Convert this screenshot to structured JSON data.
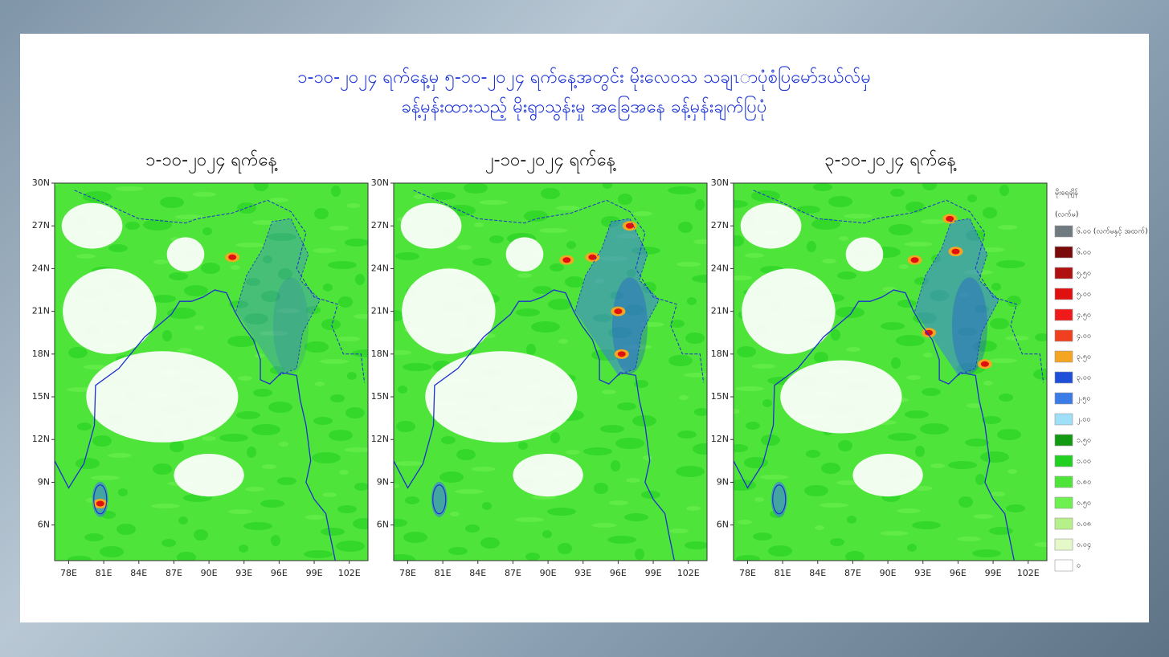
{
  "header": {
    "title_line1": "၁-၁၀-၂၀၂၄ ရက်နေ့မှ ၅-၁၀-၂၀၂၄ ရက်နေ့အတွင်း မိုးလေဝသ သချၤာပုံစံပြမော်ဒယ်လ်မှ",
    "title_line2": "ခန့်မှန်းထားသည့် မိုးရွာသွန်းမှု အခြေအနေ ခန့်မှန်းချက်ပြပုံ"
  },
  "panels": [
    {
      "title": "၁-၁၀-၂၀၂၄ ရက်နေ့"
    },
    {
      "title": "၂-၁၀-၂၀၂၄ ရက်နေ့"
    },
    {
      "title": "၃-၁၀-၂၀၂၄ ရက်နေ့"
    }
  ],
  "map": {
    "lat_range": [
      3.5,
      30
    ],
    "lon_range": [
      76.8,
      103.6
    ],
    "lat_ticks": [
      {
        "value": 30,
        "label": "30N"
      },
      {
        "value": 27,
        "label": "27N"
      },
      {
        "value": 24,
        "label": "24N"
      },
      {
        "value": 21,
        "label": "21N"
      },
      {
        "value": 18,
        "label": "18N"
      },
      {
        "value": 15,
        "label": "15N"
      },
      {
        "value": 12,
        "label": "12N"
      },
      {
        "value": 9,
        "label": "9N"
      },
      {
        "value": 6,
        "label": "6N"
      }
    ],
    "lon_ticks": [
      {
        "value": 78,
        "label": "78E"
      },
      {
        "value": 81,
        "label": "81E"
      },
      {
        "value": 84,
        "label": "84E"
      },
      {
        "value": 87,
        "label": "87E"
      },
      {
        "value": 90,
        "label": "90E"
      },
      {
        "value": 93,
        "label": "93E"
      },
      {
        "value": 96,
        "label": "96E"
      },
      {
        "value": 99,
        "label": "99E"
      },
      {
        "value": 102,
        "label": "102E"
      }
    ]
  },
  "legend": {
    "title": "မိုးရေချိန်",
    "unit": "(လက်မ)",
    "items": [
      {
        "label": "၆.၀၀ (လက်မနှင့် အထက်)",
        "color": "#6f7b80"
      },
      {
        "label": "၆.၀၀",
        "color": "#7a0a0a"
      },
      {
        "label": "၅.၅၀",
        "color": "#b01010"
      },
      {
        "label": "၅.၀၀",
        "color": "#e01010"
      },
      {
        "label": "၄.၅၀",
        "color": "#f01a1a"
      },
      {
        "label": "၄.၀၀",
        "color": "#f04020"
      },
      {
        "label": "၃.၅၀",
        "color": "#f4a623"
      },
      {
        "label": "၃.၀၀",
        "color": "#1f4fd8"
      },
      {
        "label": "၂.၅၀",
        "color": "#3c7ce8"
      },
      {
        "label": "၂.၀၀",
        "color": "#9fe0f8"
      },
      {
        "label": "၁.၅၀",
        "color": "#129a12"
      },
      {
        "label": "၁.၀၀",
        "color": "#22d022"
      },
      {
        "label": "၀.၈၀",
        "color": "#4ee43a"
      },
      {
        "label": "၀.၅၀",
        "color": "#6ef050"
      },
      {
        "label": "၀.၀၈",
        "color": "#b6f08a"
      },
      {
        "label": "၀.၀၄",
        "color": "#e4f8c8"
      },
      {
        "label": "၀",
        "color": "#ffffff"
      }
    ]
  }
}
